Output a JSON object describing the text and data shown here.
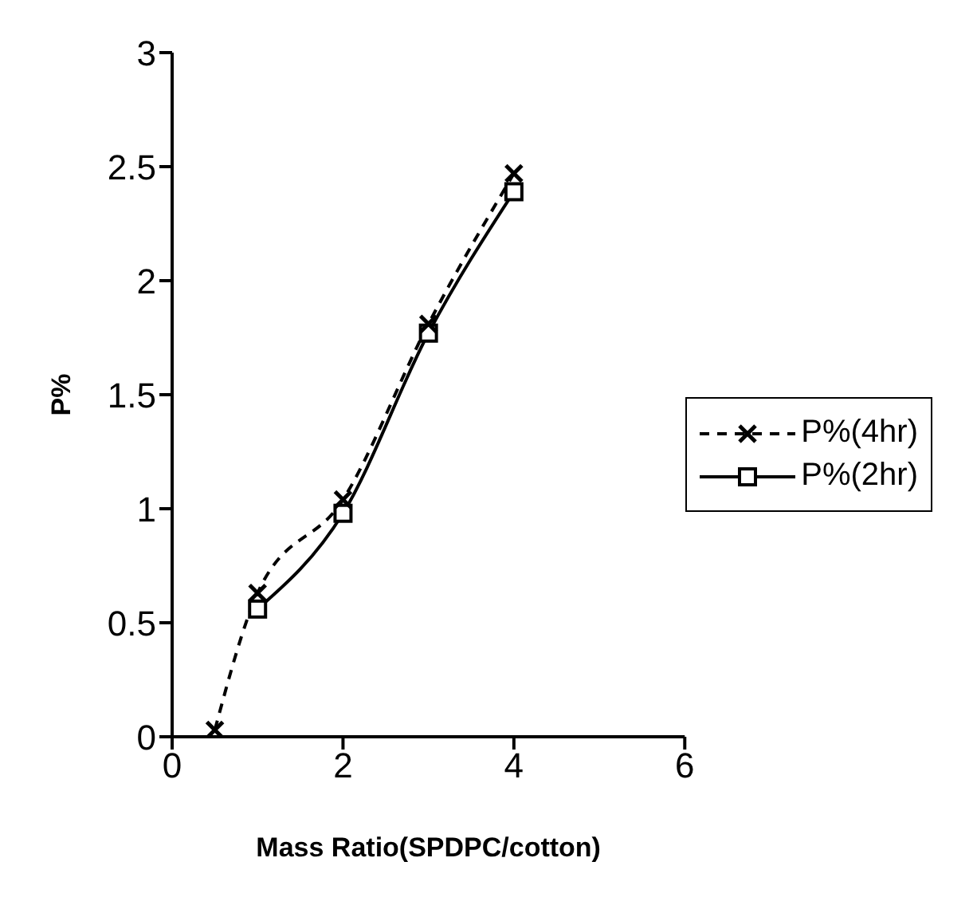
{
  "chart_data": {
    "type": "line",
    "xlabel": "Mass Ratio(SPDPC/cotton)",
    "ylabel": "P%",
    "xlim": [
      0,
      6
    ],
    "xticks": [
      0,
      2,
      4,
      6
    ],
    "ylim": [
      0,
      3
    ],
    "yticks": [
      0,
      0.5,
      1,
      1.5,
      2,
      2.5,
      3
    ],
    "grid": false,
    "legend": "right",
    "series": [
      {
        "name": "P%(4hr)",
        "color": "#000000",
        "x": [
          0.5,
          1,
          2,
          3,
          4
        ],
        "values": [
          0.03,
          0.63,
          1.04,
          1.81,
          2.47
        ],
        "marker": "cross",
        "line_style": "dashed"
      },
      {
        "name": "P%(2hr)",
        "color": "#000000",
        "x": [
          1,
          2,
          3,
          4
        ],
        "values": [
          0.56,
          0.98,
          1.77,
          2.39
        ],
        "marker": "square",
        "line_style": "solid"
      }
    ]
  }
}
